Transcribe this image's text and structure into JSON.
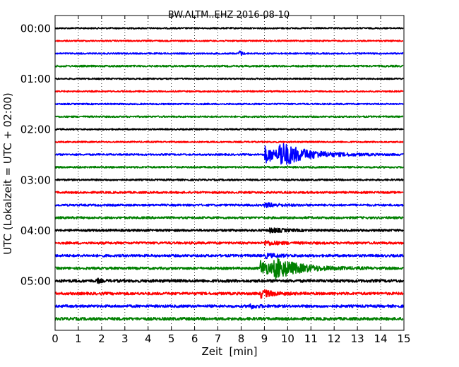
{
  "chart_data": {
    "type": "line",
    "title": "BW.ALTM..EHZ 2016-08-10",
    "xlabel": "Zeit  [min]",
    "ylabel": "UTC (Lokalzeit = UTC + 02:00)",
    "xlim": [
      0,
      15
    ],
    "x_ticks": [
      "0",
      "1",
      "2",
      "3",
      "4",
      "5",
      "6",
      "7",
      "8",
      "9",
      "10",
      "11",
      "12",
      "13",
      "14",
      "15"
    ],
    "y_ticks": [
      "00:00",
      "01:00",
      "02:00",
      "03:00",
      "04:00",
      "05:00"
    ],
    "grid": "vertical dotted",
    "trace_interval_minutes": 15,
    "trace_colors": [
      "#000000",
      "#ff0000",
      "#0000ff",
      "#008000"
    ],
    "traces": [
      {
        "start": "00:00",
        "noise": 1.0,
        "events": []
      },
      {
        "start": "00:15",
        "noise": 1.0,
        "events": []
      },
      {
        "start": "00:30",
        "noise": 1.0,
        "events": [
          {
            "t": 7.9,
            "amp": 9,
            "dur": 0.08
          }
        ]
      },
      {
        "start": "00:45",
        "noise": 1.2,
        "events": []
      },
      {
        "start": "01:00",
        "noise": 1.0,
        "events": []
      },
      {
        "start": "01:15",
        "noise": 1.0,
        "events": []
      },
      {
        "start": "01:30",
        "noise": 1.0,
        "events": []
      },
      {
        "start": "01:45",
        "noise": 1.1,
        "events": []
      },
      {
        "start": "02:00",
        "noise": 1.0,
        "events": []
      },
      {
        "start": "02:15",
        "noise": 1.0,
        "events": []
      },
      {
        "start": "02:30",
        "noise": 1.2,
        "events": [
          {
            "t": 9.0,
            "amp": 12,
            "dur": 0.7
          },
          {
            "t": 9.6,
            "amp": 15,
            "dur": 1.2
          }
        ]
      },
      {
        "start": "02:45",
        "noise": 1.2,
        "events": []
      },
      {
        "start": "03:00",
        "noise": 1.2,
        "events": []
      },
      {
        "start": "03:15",
        "noise": 1.4,
        "events": []
      },
      {
        "start": "03:30",
        "noise": 1.4,
        "events": [
          {
            "t": 9.0,
            "amp": 3,
            "dur": 0.6
          }
        ]
      },
      {
        "start": "03:45",
        "noise": 1.5,
        "events": []
      },
      {
        "start": "04:00",
        "noise": 1.6,
        "events": [
          {
            "t": 9.2,
            "amp": 3,
            "dur": 0.6
          }
        ]
      },
      {
        "start": "04:15",
        "noise": 1.6,
        "events": [
          {
            "t": 9.0,
            "amp": 3,
            "dur": 0.6
          }
        ]
      },
      {
        "start": "04:30",
        "noise": 1.7,
        "events": [
          {
            "t": 9.0,
            "amp": 3,
            "dur": 0.5
          }
        ]
      },
      {
        "start": "04:45",
        "noise": 1.7,
        "events": [
          {
            "t": 8.8,
            "amp": 11,
            "dur": 0.7
          },
          {
            "t": 9.4,
            "amp": 12,
            "dur": 1.1
          }
        ]
      },
      {
        "start": "05:00",
        "noise": 2.0,
        "events": [
          {
            "t": 1.8,
            "amp": 4,
            "dur": 0.1
          }
        ]
      },
      {
        "start": "05:15",
        "noise": 1.8,
        "events": [
          {
            "t": 8.8,
            "amp": 6,
            "dur": 0.5
          }
        ]
      },
      {
        "start": "05:30",
        "noise": 1.8,
        "events": [
          {
            "t": 8.3,
            "amp": 4,
            "dur": 0.3
          }
        ]
      },
      {
        "start": "05:45",
        "noise": 2.0,
        "events": []
      }
    ]
  }
}
